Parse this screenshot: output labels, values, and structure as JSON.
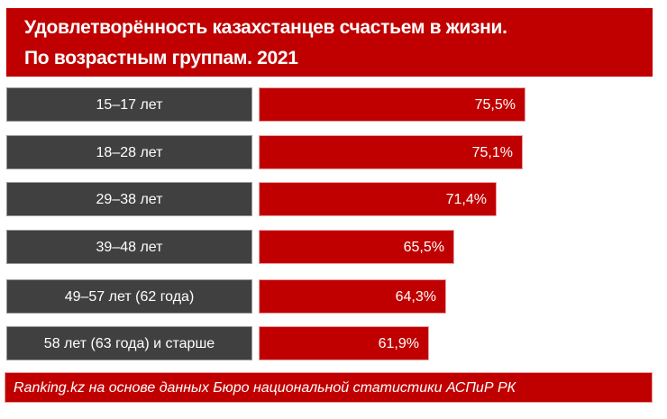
{
  "chart_data": {
    "type": "bar",
    "title": "Удовлетворённость казахстанцев счастьем в жизни. По возрастным группам. 2021",
    "title_line1": "Удовлетворённость казахстанцев счастьем в жизни.",
    "title_line2": "По возрастным группам. 2021",
    "categories": [
      "15–17 лет",
      "18–28 лет",
      "29–38 лет",
      "39–48 лет",
      "49–57 лет  (62 года)",
      "58 лет (63 года) и старше"
    ],
    "values": [
      75.5,
      75.1,
      71.4,
      65.5,
      64.3,
      61.9
    ],
    "labels": [
      "75,5%",
      "75,1%",
      "71,4%",
      "65,5%",
      "64,3%",
      "61,9%"
    ],
    "unit": "%",
    "source": "Ranking.kz на основе данных Бюро национальной статистики АСПиР РК",
    "colors": {
      "bar": "#c00000",
      "label_bg": "#404040"
    }
  }
}
